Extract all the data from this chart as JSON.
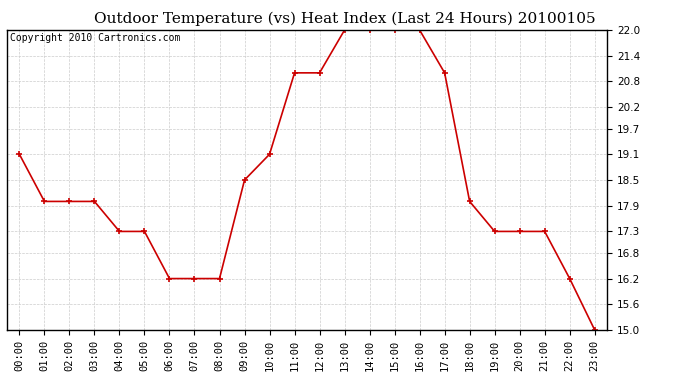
{
  "title": "Outdoor Temperature (vs) Heat Index (Last 24 Hours) 20100105",
  "copyright": "Copyright 2010 Cartronics.com",
  "x_labels": [
    "00:00",
    "01:00",
    "02:00",
    "03:00",
    "04:00",
    "05:00",
    "06:00",
    "07:00",
    "08:00",
    "09:00",
    "10:00",
    "11:00",
    "12:00",
    "13:00",
    "14:00",
    "15:00",
    "16:00",
    "17:00",
    "18:00",
    "19:00",
    "20:00",
    "21:00",
    "22:00",
    "23:00"
  ],
  "y_values": [
    19.1,
    18.0,
    18.0,
    18.0,
    17.3,
    17.3,
    16.2,
    16.2,
    16.2,
    18.5,
    19.1,
    21.0,
    21.0,
    22.0,
    22.0,
    22.0,
    22.0,
    21.0,
    18.0,
    17.3,
    17.3,
    17.3,
    16.2,
    15.0
  ],
  "line_color": "#cc0000",
  "marker": "+",
  "marker_size": 5,
  "marker_color": "#cc0000",
  "background_color": "#ffffff",
  "grid_color": "#cccccc",
  "y_min": 15.0,
  "y_max": 22.0,
  "y_ticks": [
    15.0,
    15.6,
    16.2,
    16.8,
    17.3,
    17.9,
    18.5,
    19.1,
    19.7,
    20.2,
    20.8,
    21.4,
    22.0
  ],
  "title_fontsize": 11,
  "tick_fontsize": 7.5,
  "copyright_fontsize": 7
}
